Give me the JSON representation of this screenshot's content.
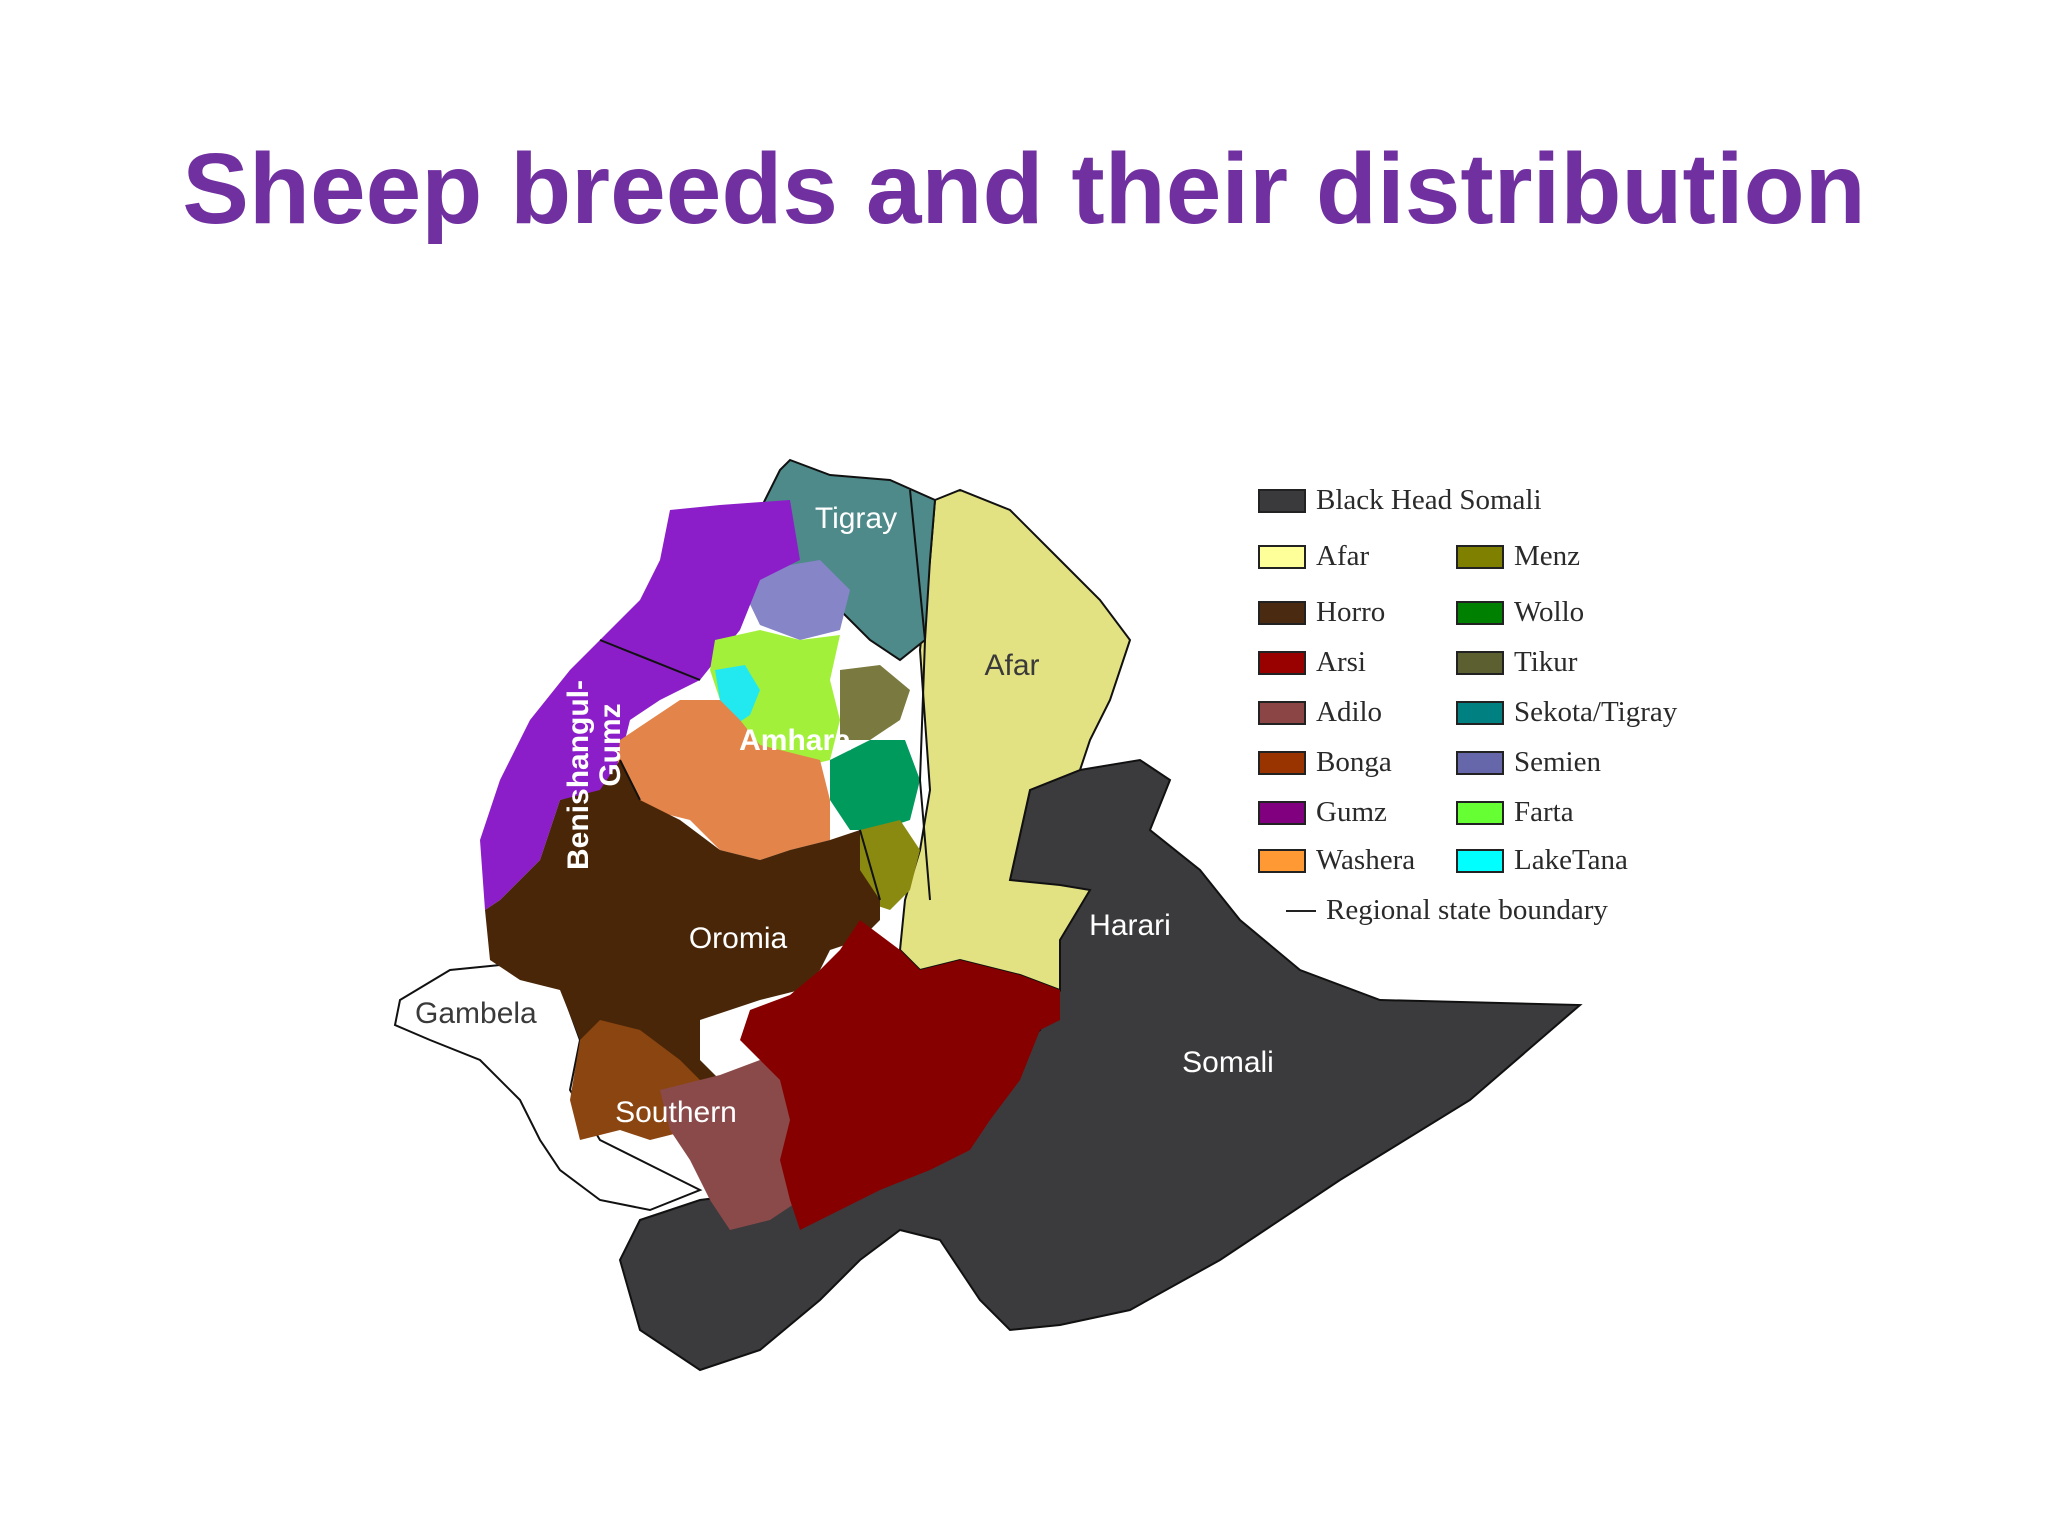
{
  "slide": {
    "title": "Sheep breeds and their distribution"
  },
  "map": {
    "regions": [
      {
        "name": "Tigray"
      },
      {
        "name": "Afar"
      },
      {
        "name": "Amhara"
      },
      {
        "name": "Benishangul-"
      },
      {
        "name": "Gumz"
      },
      {
        "name": "Oromia"
      },
      {
        "name": "Harari"
      },
      {
        "name": "Gambela"
      },
      {
        "name": "Somali"
      },
      {
        "name": "Southern"
      }
    ]
  },
  "legend": {
    "items": [
      {
        "label": "Black Head Somali",
        "color": "#3a3a3c"
      },
      {
        "label": "Afar",
        "color": "#ffff99"
      },
      {
        "label": "Menz",
        "color": "#808000"
      },
      {
        "label": "Horro",
        "color": "#4a2a10"
      },
      {
        "label": "Wollo",
        "color": "#008000"
      },
      {
        "label": "Arsi",
        "color": "#990000"
      },
      {
        "label": "Tikur",
        "color": "#5c6030"
      },
      {
        "label": "Adilo",
        "color": "#8b4545"
      },
      {
        "label": "Sekota/Tigray",
        "color": "#008080"
      },
      {
        "label": "Bonga",
        "color": "#993300"
      },
      {
        "label": "Semien",
        "color": "#6666aa"
      },
      {
        "label": "Gumz",
        "color": "#800080"
      },
      {
        "label": "Farta",
        "color": "#66ff33"
      },
      {
        "label": "Washera",
        "color": "#ff9933"
      },
      {
        "label": "LakeTana",
        "color": "#00ffff"
      }
    ],
    "boundary_label": "Regional state boundary"
  }
}
